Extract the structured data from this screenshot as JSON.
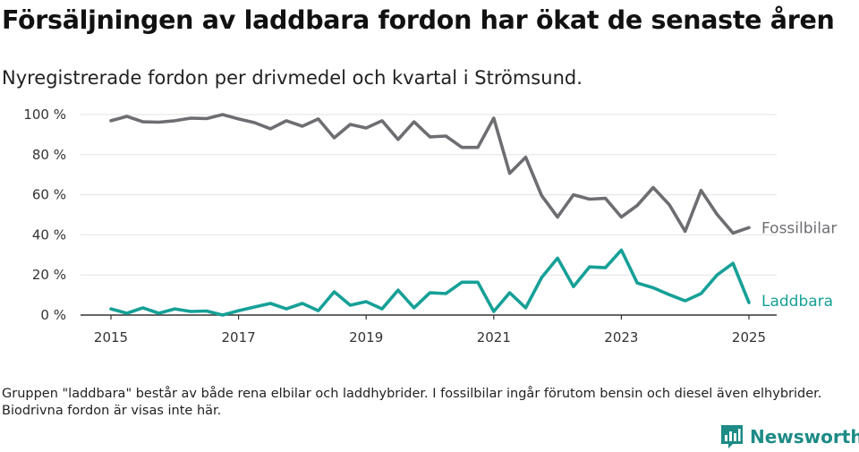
{
  "header": {
    "title": "Försäljningen av laddbara fordon har ökat de senaste åren",
    "subtitle": "Nyregistrerade fordon per drivmedel och kvartal i Strömsund."
  },
  "footnote": "Gruppen \"laddbara\" består av både rena elbilar och laddhybrider. I fossilbilar ingår förutom bensin och diesel även elhybrider. Biodrivna fordon är visas inte här.",
  "brand": {
    "name": "Newsworthy",
    "color": "#1d8b86",
    "logo_icon": "bar-chart-icon"
  },
  "chart_data": {
    "type": "line",
    "title": "Försäljningen av laddbara fordon har ökat de senaste åren",
    "subtitle": "Nyregistrerade fordon per drivmedel och kvartal i Strömsund.",
    "xlabel": "",
    "ylabel": "",
    "xlim": [
      2015,
      2025
    ],
    "ylim": [
      0,
      100
    ],
    "grid": true,
    "x_ticks": [
      2015,
      2017,
      2019,
      2021,
      2023,
      2025
    ],
    "x_tick_labels": [
      "2015",
      "2017",
      "2019",
      "2021",
      "2023",
      "2025"
    ],
    "y_ticks": [
      0,
      20,
      40,
      60,
      80,
      100
    ],
    "y_tick_labels": [
      "0 %",
      "20 %",
      "40 %",
      "60 %",
      "80 %",
      "100 %"
    ],
    "x": [
      2015.0,
      2015.25,
      2015.5,
      2015.75,
      2016.0,
      2016.25,
      2016.5,
      2016.75,
      2017.0,
      2017.25,
      2017.5,
      2017.75,
      2018.0,
      2018.25,
      2018.5,
      2018.75,
      2019.0,
      2019.25,
      2019.5,
      2019.75,
      2020.0,
      2020.25,
      2020.5,
      2020.75,
      2021.0,
      2021.25,
      2021.5,
      2021.75,
      2022.0,
      2022.25,
      2022.5,
      2022.75,
      2023.0,
      2023.25,
      2023.5,
      2023.75,
      2024.0,
      2024.25,
      2024.5,
      2024.75,
      2025.0
    ],
    "series": [
      {
        "name": "Fossilbilar",
        "color": "#6e6d72",
        "values": [
          96.9,
          99.1,
          96.4,
          96.2,
          96.9,
          98.2,
          98.0,
          100.0,
          97.8,
          96.0,
          92.9,
          96.9,
          94.2,
          97.8,
          88.4,
          95.1,
          93.3,
          96.9,
          87.6,
          96.4,
          88.9,
          89.3,
          83.6,
          83.6,
          98.2,
          70.7,
          78.7,
          59.6,
          48.9,
          60.0,
          57.8,
          58.2,
          48.9,
          54.7,
          63.6,
          55.1,
          41.8,
          62.2,
          50.2,
          40.9,
          43.6
        ],
        "label": "Fossilbilar"
      },
      {
        "name": "Laddbara",
        "color": "#16a097",
        "values": [
          3.1,
          0.9,
          3.6,
          0.9,
          3.1,
          1.8,
          2.0,
          0.0,
          2.2,
          4.0,
          5.8,
          3.1,
          5.8,
          2.2,
          11.6,
          4.9,
          6.7,
          3.1,
          12.4,
          3.6,
          11.1,
          10.7,
          16.4,
          16.4,
          1.8,
          11.1,
          3.6,
          18.7,
          28.4,
          14.2,
          24.0,
          23.6,
          32.4,
          16.0,
          13.6,
          10.2,
          7.1,
          10.7,
          20.0,
          25.8,
          6.2
        ],
        "label": "Laddbara"
      }
    ]
  }
}
